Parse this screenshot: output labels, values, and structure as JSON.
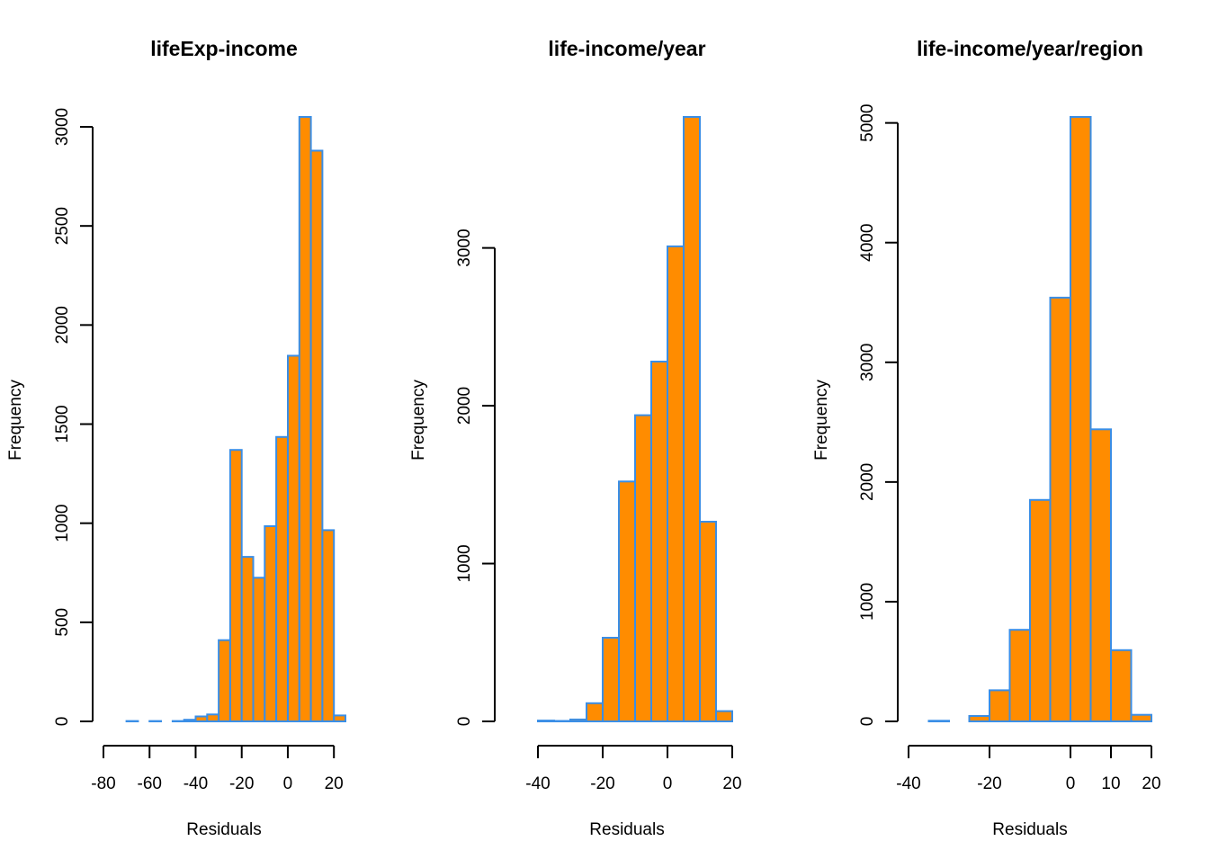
{
  "colors": {
    "bar_fill": "#FF8C00",
    "bar_stroke": "#3A8EE6",
    "axis": "#000000",
    "background": "#FFFFFF"
  },
  "chart_data": [
    {
      "type": "bar",
      "subtype": "histogram",
      "title": "lifeExp-income",
      "xlabel": "Residuals",
      "ylabel": "Frequency",
      "xlim": [
        -80,
        25
      ],
      "ylim": [
        0,
        3050
      ],
      "xticks": [
        -80,
        -60,
        -40,
        -20,
        0,
        20
      ],
      "yticks": [
        0,
        500,
        1000,
        1500,
        2000,
        2500,
        3000
      ],
      "bins": [
        {
          "x0": -80,
          "x1": -75,
          "count": 0
        },
        {
          "x0": -75,
          "x1": -70,
          "count": 0
        },
        {
          "x0": -70,
          "x1": -65,
          "count": 2
        },
        {
          "x0": -65,
          "x1": -60,
          "count": 0
        },
        {
          "x0": -60,
          "x1": -55,
          "count": 2
        },
        {
          "x0": -55,
          "x1": -50,
          "count": 0
        },
        {
          "x0": -50,
          "x1": -45,
          "count": 2
        },
        {
          "x0": -45,
          "x1": -40,
          "count": 8
        },
        {
          "x0": -40,
          "x1": -35,
          "count": 25
        },
        {
          "x0": -35,
          "x1": -30,
          "count": 35
        },
        {
          "x0": -30,
          "x1": -25,
          "count": 410
        },
        {
          "x0": -25,
          "x1": -20,
          "count": 1370
        },
        {
          "x0": -20,
          "x1": -15,
          "count": 830
        },
        {
          "x0": -15,
          "x1": -10,
          "count": 725
        },
        {
          "x0": -10,
          "x1": -5,
          "count": 985
        },
        {
          "x0": -5,
          "x1": 0,
          "count": 1435
        },
        {
          "x0": 0,
          "x1": 5,
          "count": 1845
        },
        {
          "x0": 5,
          "x1": 10,
          "count": 3050
        },
        {
          "x0": 10,
          "x1": 15,
          "count": 2880
        },
        {
          "x0": 15,
          "x1": 20,
          "count": 965
        },
        {
          "x0": 20,
          "x1": 25,
          "count": 30
        }
      ]
    },
    {
      "type": "bar",
      "subtype": "histogram",
      "title": "life-income/year",
      "xlabel": "Residuals",
      "ylabel": "Frequency",
      "xlim": [
        -50,
        25
      ],
      "ylim": [
        0,
        3830
      ],
      "xticks": [
        -40,
        -20,
        0,
        20
      ],
      "yticks": [
        0,
        1000,
        2000,
        3000
      ],
      "bins": [
        {
          "x0": -50,
          "x1": -45,
          "count": 0
        },
        {
          "x0": -45,
          "x1": -40,
          "count": 0
        },
        {
          "x0": -40,
          "x1": -35,
          "count": 5
        },
        {
          "x0": -35,
          "x1": -30,
          "count": 3
        },
        {
          "x0": -30,
          "x1": -25,
          "count": 12
        },
        {
          "x0": -25,
          "x1": -20,
          "count": 115
        },
        {
          "x0": -20,
          "x1": -15,
          "count": 530
        },
        {
          "x0": -15,
          "x1": -10,
          "count": 1520
        },
        {
          "x0": -10,
          "x1": -5,
          "count": 1940
        },
        {
          "x0": -5,
          "x1": 0,
          "count": 2280
        },
        {
          "x0": 0,
          "x1": 5,
          "count": 3010
        },
        {
          "x0": 5,
          "x1": 10,
          "count": 3830
        },
        {
          "x0": 10,
          "x1": 15,
          "count": 1265
        },
        {
          "x0": 15,
          "x1": 20,
          "count": 65
        },
        {
          "x0": 20,
          "x1": 25,
          "count": 0
        }
      ]
    },
    {
      "type": "bar",
      "subtype": "histogram",
      "title": "life-income/year/region",
      "xlabel": "Residuals",
      "ylabel": "Frequency",
      "xlim": [
        -40,
        20
      ],
      "ylim": [
        0,
        5050
      ],
      "xticks": [
        -40,
        -20,
        0,
        10,
        20
      ],
      "yticks": [
        0,
        1000,
        2000,
        3000,
        4000,
        5000
      ],
      "bins": [
        {
          "x0": -40,
          "x1": -35,
          "count": 0
        },
        {
          "x0": -35,
          "x1": -30,
          "count": 5
        },
        {
          "x0": -30,
          "x1": -25,
          "count": 0
        },
        {
          "x0": -25,
          "x1": -20,
          "count": 45
        },
        {
          "x0": -20,
          "x1": -15,
          "count": 260
        },
        {
          "x0": -15,
          "x1": -10,
          "count": 765
        },
        {
          "x0": -10,
          "x1": -5,
          "count": 1850
        },
        {
          "x0": -5,
          "x1": 0,
          "count": 3540
        },
        {
          "x0": 0,
          "x1": 5,
          "count": 5050
        },
        {
          "x0": 5,
          "x1": 10,
          "count": 2440
        },
        {
          "x0": 10,
          "x1": 15,
          "count": 595
        },
        {
          "x0": 15,
          "x1": 20,
          "count": 55
        }
      ]
    }
  ]
}
